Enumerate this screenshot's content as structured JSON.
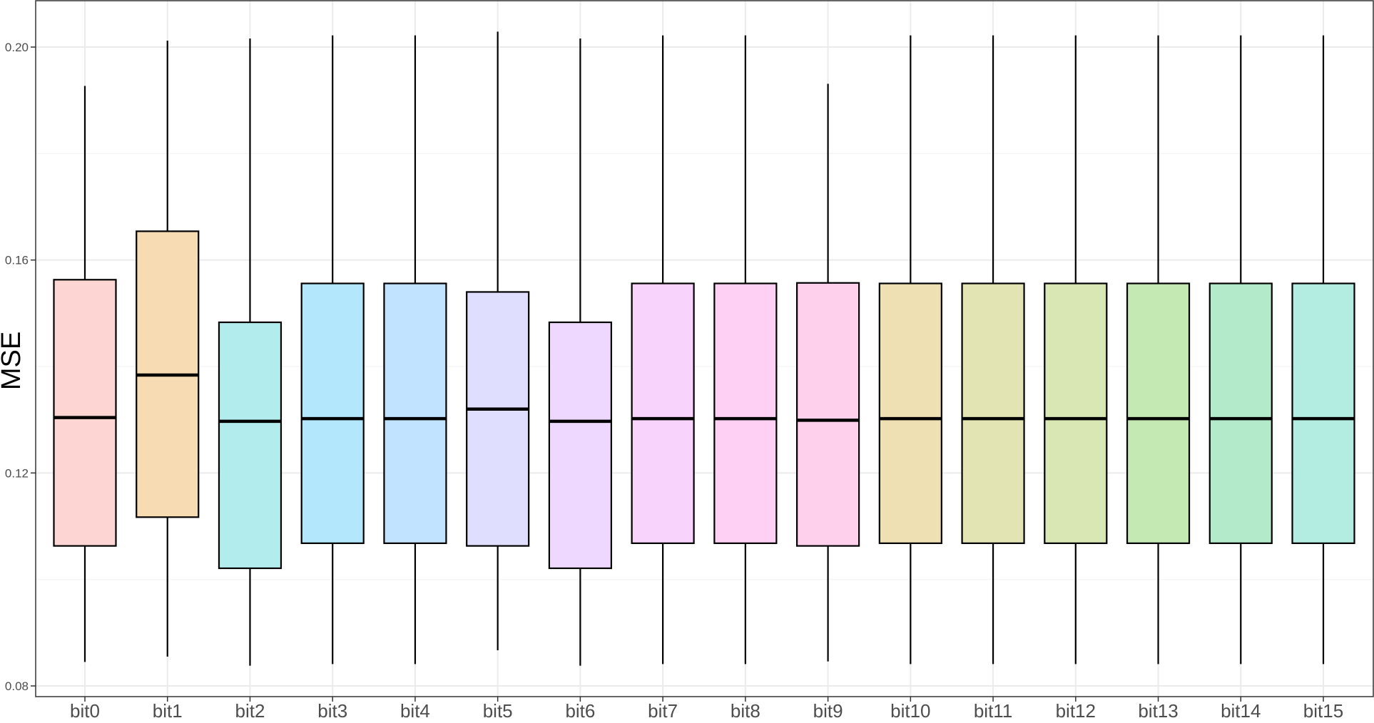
{
  "chart_data": {
    "type": "box",
    "title": "",
    "xlabel": "",
    "ylabel": "MSE",
    "ylim": [
      0.078,
      0.208
    ],
    "yticks": [
      "0.08",
      "0.12",
      "0.16",
      "0.20"
    ],
    "ytick_values": [
      0.08,
      0.12,
      0.16,
      0.2
    ],
    "minor_grid_values": [
      0.1,
      0.14,
      0.18
    ],
    "grid": true,
    "legend": "none",
    "categories": [
      "bit0",
      "bit1",
      "bit2",
      "bit3",
      "bit4",
      "bit5",
      "bit6",
      "bit7",
      "bit8",
      "bit9",
      "bit10",
      "bit11",
      "bit12",
      "bit13",
      "bit14",
      "bit15"
    ],
    "boxes": [
      {
        "name": "bit0",
        "whisker_low": 0.0845,
        "q1": 0.1063,
        "median": 0.1304,
        "q3": 0.1563,
        "whisker_high": 0.1927,
        "color": "#F8766D"
      },
      {
        "name": "bit1",
        "whisker_low": 0.0855,
        "q1": 0.1117,
        "median": 0.1384,
        "q3": 0.1654,
        "whisker_high": 0.2012,
        "color": "#E58700"
      },
      {
        "name": "bit2",
        "whisker_low": 0.0838,
        "q1": 0.1021,
        "median": 0.1297,
        "q3": 0.1483,
        "whisker_high": 0.2016,
        "color": "#00BFC4"
      },
      {
        "name": "bit3",
        "whisker_low": 0.0841,
        "q1": 0.1068,
        "median": 0.1302,
        "q3": 0.1556,
        "whisker_high": 0.2022,
        "color": "#00B0F6"
      },
      {
        "name": "bit4",
        "whisker_low": 0.0841,
        "q1": 0.1068,
        "median": 0.1302,
        "q3": 0.1556,
        "whisker_high": 0.2022,
        "color": "#35A2FF"
      },
      {
        "name": "bit5",
        "whisker_low": 0.0867,
        "q1": 0.1063,
        "median": 0.132,
        "q3": 0.154,
        "whisker_high": 0.2029,
        "color": "#9590FF"
      },
      {
        "name": "bit6",
        "whisker_low": 0.0838,
        "q1": 0.1021,
        "median": 0.1297,
        "q3": 0.1483,
        "whisker_high": 0.2016,
        "color": "#C77CFF"
      },
      {
        "name": "bit7",
        "whisker_low": 0.0841,
        "q1": 0.1068,
        "median": 0.1302,
        "q3": 0.1556,
        "whisker_high": 0.2022,
        "color": "#E76BF3"
      },
      {
        "name": "bit8",
        "whisker_low": 0.0841,
        "q1": 0.1068,
        "median": 0.1302,
        "q3": 0.1556,
        "whisker_high": 0.2022,
        "color": "#FA62DB"
      },
      {
        "name": "bit9",
        "whisker_low": 0.0846,
        "q1": 0.1063,
        "median": 0.1299,
        "q3": 0.1557,
        "whisker_high": 0.1931,
        "color": "#FF62BC"
      },
      {
        "name": "bit10",
        "whisker_low": 0.0841,
        "q1": 0.1068,
        "median": 0.1302,
        "q3": 0.1556,
        "whisker_high": 0.2022,
        "color": "#C99800"
      },
      {
        "name": "bit11",
        "whisker_low": 0.0841,
        "q1": 0.1068,
        "median": 0.1302,
        "q3": 0.1556,
        "whisker_high": 0.2022,
        "color": "#A3A500"
      },
      {
        "name": "bit12",
        "whisker_low": 0.0841,
        "q1": 0.1068,
        "median": 0.1302,
        "q3": 0.1556,
        "whisker_high": 0.2022,
        "color": "#7CAE00"
      },
      {
        "name": "bit13",
        "whisker_low": 0.0841,
        "q1": 0.1068,
        "median": 0.1302,
        "q3": 0.1556,
        "whisker_high": 0.2022,
        "color": "#39B600"
      },
      {
        "name": "bit14",
        "whisker_low": 0.0841,
        "q1": 0.1068,
        "median": 0.1302,
        "q3": 0.1556,
        "whisker_high": 0.2022,
        "color": "#00BB4E"
      },
      {
        "name": "bit15",
        "whisker_low": 0.0841,
        "q1": 0.1068,
        "median": 0.1302,
        "q3": 0.1556,
        "whisker_high": 0.2022,
        "color": "#00C19A"
      }
    ]
  }
}
